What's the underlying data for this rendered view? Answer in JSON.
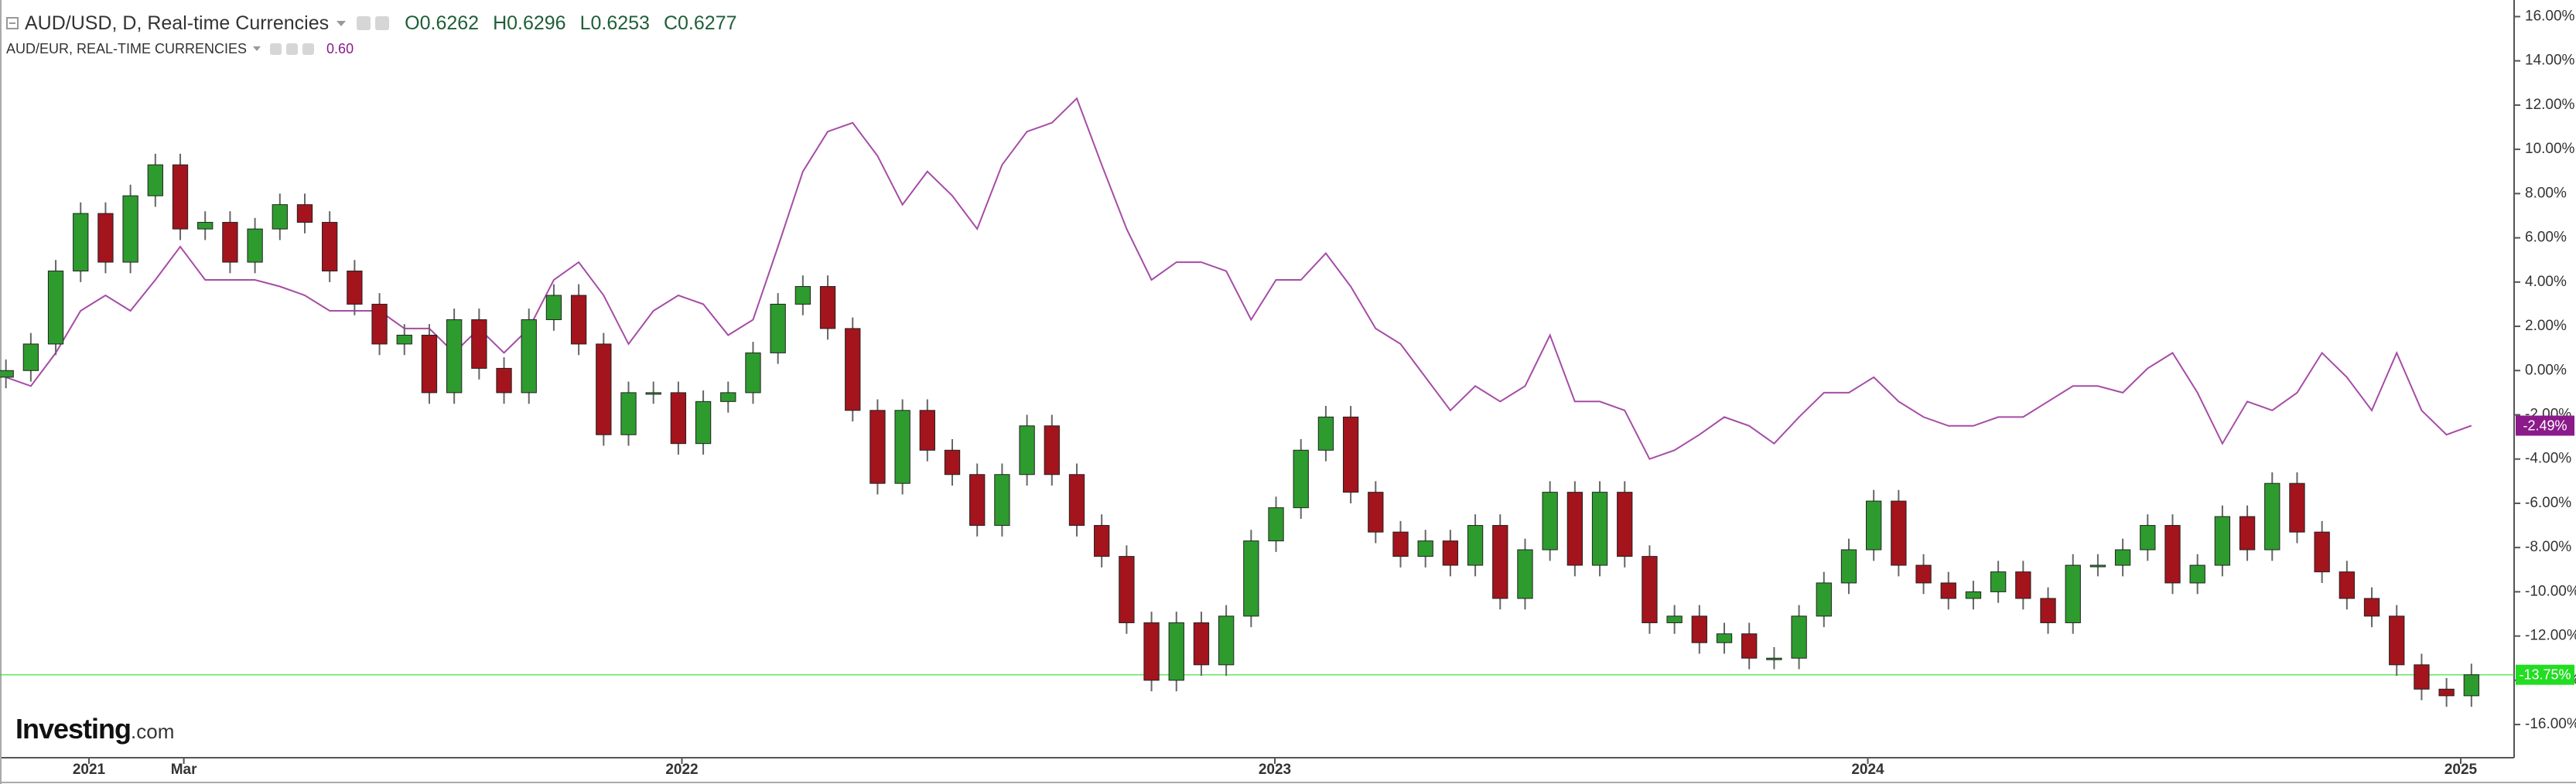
{
  "chart_data": {
    "type": "candlestick",
    "title": "AUD/USD, D, Real-time Currencies",
    "ohlc_labels": [
      "O",
      "H",
      "L",
      "C"
    ],
    "ohlc_values": [
      0.6262,
      0.6296,
      0.6253,
      0.6277
    ],
    "up_color": "#2e9b2e",
    "down_color": "#a3141c",
    "xlim": [
      2020.85,
      2025.09
    ],
    "xticks": [
      2021,
      {
        "value": 2021.16,
        "label": "Mar"
      },
      2022,
      2023,
      2024,
      2025
    ],
    "ylim": [
      -17.5,
      16.75
    ],
    "yticks": [
      {
        "value": 16,
        "label": "16.00%"
      },
      {
        "value": 14,
        "label": "14.00%"
      },
      {
        "value": 12,
        "label": "12.00%"
      },
      {
        "value": 10,
        "label": "10.00%"
      },
      {
        "value": 8,
        "label": "8.00%"
      },
      {
        "value": 6,
        "label": "6.00%"
      },
      {
        "value": 4,
        "label": "4.00%"
      },
      {
        "value": 2,
        "label": "2.00%"
      },
      {
        "value": 0,
        "label": "0.00%"
      },
      {
        "value": -2,
        "label": "-2.00%"
      },
      {
        "value": -4,
        "label": "-4.00%"
      },
      {
        "value": -6,
        "label": "-6.00%"
      },
      {
        "value": -8,
        "label": "-8.00%"
      },
      {
        "value": -10,
        "label": "-10.00%"
      },
      {
        "value": -12,
        "label": "-12.00%"
      },
      {
        "value": -14,
        "label": "-14.00%"
      },
      {
        "value": -16,
        "label": "-16.00%"
      }
    ],
    "x": [
      2020.86,
      2020.902,
      2020.944,
      2020.986,
      2021.028,
      2021.07,
      2021.112,
      2021.154,
      2021.196,
      2021.238,
      2021.28,
      2021.322,
      2021.364,
      2021.406,
      2021.448,
      2021.49,
      2021.532,
      2021.574,
      2021.616,
      2021.658,
      2021.7,
      2021.742,
      2021.784,
      2021.826,
      2021.868,
      2021.91,
      2021.952,
      2021.994,
      2022.036,
      2022.078,
      2022.12,
      2022.162,
      2022.204,
      2022.246,
      2022.288,
      2022.33,
      2022.372,
      2022.414,
      2022.456,
      2022.498,
      2022.54,
      2022.582,
      2022.624,
      2022.666,
      2022.708,
      2022.75,
      2022.792,
      2022.834,
      2022.876,
      2022.918,
      2022.96,
      2023.002,
      2023.044,
      2023.086,
      2023.128,
      2023.17,
      2023.212,
      2023.254,
      2023.296,
      2023.338,
      2023.38,
      2023.422,
      2023.464,
      2023.506,
      2023.548,
      2023.59,
      2023.632,
      2023.674,
      2023.716,
      2023.758,
      2023.8,
      2023.842,
      2023.884,
      2023.926,
      2023.968,
      2024.01,
      2024.052,
      2024.094,
      2024.136,
      2024.178,
      2024.22,
      2024.262,
      2024.304,
      2024.346,
      2024.388,
      2024.43,
      2024.472,
      2024.514,
      2024.556,
      2024.598,
      2024.64,
      2024.682,
      2024.724,
      2024.766,
      2024.808,
      2024.85,
      2024.892,
      2024.934,
      2024.976,
      2025.018
    ],
    "open": [
      -0.3,
      0,
      1.2,
      4.5,
      7.1,
      4.9,
      7.9,
      9.3,
      6.4,
      6.7,
      4.9,
      6.4,
      7.5,
      6.7,
      4.5,
      3.0,
      1.2,
      1.6,
      -1.0,
      2.3,
      0.1,
      -1.0,
      2.3,
      3.4,
      1.2,
      -2.9,
      -1.0,
      -1.0,
      -3.3,
      -1.4,
      -1.0,
      0.8,
      3.0,
      3.8,
      1.9,
      -1.8,
      -5.1,
      -1.8,
      -3.6,
      -4.7,
      -7.0,
      -4.7,
      -2.5,
      -4.7,
      -7.0,
      -8.4,
      -11.4,
      -14.0,
      -11.4,
      -13.3,
      -11.1,
      -7.7,
      -6.2,
      -3.6,
      -2.1,
      -5.5,
      -7.3,
      -8.4,
      -7.7,
      -8.8,
      -7.0,
      -10.3,
      -8.1,
      -5.5,
      -8.8,
      -5.5,
      -8.4,
      -11.4,
      -11.1,
      -12.3,
      -11.9,
      -13.0,
      -13.0,
      -11.1,
      -9.6,
      -8.1,
      -5.9,
      -8.8,
      -9.6,
      -10.3,
      -10.0,
      -9.1,
      -10.3,
      -11.4,
      -8.8,
      -8.8,
      -8.1,
      -7.0,
      -9.6,
      -8.8,
      -6.6,
      -8.1,
      -5.1,
      -7.3,
      -9.1,
      -10.3,
      -11.1,
      -13.3,
      -14.4,
      -14.7
    ],
    "high": [
      0.5,
      1.7,
      5.0,
      7.6,
      7.6,
      8.4,
      9.8,
      9.8,
      7.2,
      7.2,
      6.9,
      8.0,
      8.0,
      7.2,
      5.0,
      3.5,
      2.1,
      2.1,
      2.8,
      2.8,
      0.6,
      2.8,
      3.9,
      3.9,
      1.7,
      -0.5,
      -0.5,
      -0.5,
      -0.9,
      -0.5,
      1.3,
      3.5,
      4.3,
      4.3,
      2.4,
      -1.3,
      -1.3,
      -1.3,
      -3.1,
      -4.2,
      -4.2,
      -2.0,
      -2.0,
      -4.2,
      -6.5,
      -7.9,
      -10.9,
      -10.9,
      -10.9,
      -10.6,
      -7.2,
      -5.7,
      -3.1,
      -1.6,
      -1.6,
      -5.0,
      -6.8,
      -7.2,
      -7.2,
      -6.5,
      -6.5,
      -7.6,
      -5.0,
      -5.0,
      -5.0,
      -5.0,
      -7.9,
      -10.6,
      -10.6,
      -11.4,
      -11.4,
      -12.5,
      -10.6,
      -9.1,
      -7.6,
      -5.4,
      -5.4,
      -8.3,
      -9.1,
      -9.5,
      -8.6,
      -8.6,
      -9.8,
      -8.3,
      -8.3,
      -7.6,
      -6.5,
      -6.5,
      -8.3,
      -6.1,
      -6.1,
      -4.6,
      -4.6,
      -6.8,
      -8.6,
      -9.8,
      -10.6,
      -12.8,
      -13.9,
      -13.25
    ],
    "low": [
      -0.8,
      -0.5,
      0.7,
      4.0,
      4.4,
      4.4,
      7.4,
      5.9,
      5.9,
      4.4,
      4.4,
      5.9,
      6.2,
      4.0,
      2.5,
      0.7,
      0.7,
      -1.5,
      -1.5,
      -0.4,
      -1.5,
      -1.5,
      1.8,
      0.7,
      -3.4,
      -3.4,
      -1.5,
      -3.8,
      -3.8,
      -1.9,
      -1.5,
      0.3,
      2.5,
      1.4,
      -2.3,
      -5.6,
      -5.6,
      -4.1,
      -5.2,
      -7.5,
      -7.5,
      -5.2,
      -5.2,
      -7.5,
      -8.9,
      -11.9,
      -14.5,
      -14.5,
      -13.8,
      -13.8,
      -11.6,
      -8.2,
      -6.7,
      -4.1,
      -6.0,
      -7.8,
      -8.9,
      -8.9,
      -9.3,
      -9.3,
      -10.8,
      -10.8,
      -8.6,
      -9.3,
      -9.3,
      -8.9,
      -11.9,
      -11.9,
      -12.8,
      -12.8,
      -13.5,
      -13.5,
      -13.5,
      -11.6,
      -10.1,
      -8.6,
      -9.3,
      -10.1,
      -10.8,
      -10.8,
      -10.5,
      -10.8,
      -11.9,
      -11.9,
      -9.3,
      -9.3,
      -8.6,
      -10.1,
      -10.1,
      -9.3,
      -8.6,
      -8.6,
      -7.8,
      -9.6,
      -10.8,
      -11.6,
      -13.8,
      -14.9,
      -15.2,
      -15.2
    ],
    "close": [
      0,
      1.2,
      4.5,
      7.1,
      4.9,
      7.9,
      9.3,
      6.4,
      6.7,
      4.9,
      6.4,
      7.5,
      6.7,
      4.5,
      3.0,
      1.2,
      1.6,
      -1.0,
      2.3,
      0.1,
      -1.0,
      2.3,
      3.4,
      1.2,
      -2.9,
      -1.0,
      -1.0,
      -3.3,
      -1.4,
      -1.0,
      0.8,
      3.0,
      3.8,
      1.9,
      -1.8,
      -5.1,
      -1.8,
      -3.6,
      -4.7,
      -7.0,
      -4.7,
      -2.5,
      -4.7,
      -7.0,
      -8.4,
      -11.4,
      -14.0,
      -11.4,
      -13.3,
      -11.1,
      -7.7,
      -6.2,
      -3.6,
      -2.1,
      -5.5,
      -7.3,
      -8.4,
      -7.7,
      -8.8,
      -7.0,
      -10.3,
      -8.1,
      -5.5,
      -8.8,
      -5.5,
      -8.4,
      -11.4,
      -11.1,
      -12.3,
      -11.9,
      -13.0,
      -13.0,
      -11.1,
      -9.6,
      -8.1,
      -5.9,
      -8.8,
      -9.6,
      -10.3,
      -10.0,
      -9.1,
      -10.3,
      -11.4,
      -8.8,
      -8.8,
      -8.1,
      -7.0,
      -9.6,
      -8.8,
      -6.6,
      -8.1,
      -5.1,
      -7.3,
      -9.1,
      -10.3,
      -11.1,
      -13.3,
      -14.4,
      -14.7,
      -13.75
    ],
    "last_tag": {
      "value": -13.75,
      "label": "-13.75%"
    },
    "last_color": "#22dd22",
    "overlay": {
      "type": "line",
      "name": "AUD/EUR, REAL-TIME CURRENCIES",
      "legend_value": {
        "value": 0.6,
        "label": "0.60"
      },
      "color": "#a64ca6",
      "tag_color": "#8b1a8b",
      "values": [
        -0.3,
        -0.7,
        0.8,
        2.7,
        3.4,
        2.7,
        4.1,
        5.6,
        4.1,
        4.1,
        4.1,
        3.8,
        3.4,
        2.7,
        2.7,
        2.7,
        1.9,
        1.9,
        0.8,
        1.9,
        0.8,
        1.9,
        4.1,
        4.9,
        3.4,
        1.2,
        2.7,
        3.4,
        3.0,
        1.6,
        2.3,
        5.6,
        9.0,
        10.8,
        11.2,
        9.7,
        7.5,
        9.0,
        7.9,
        6.4,
        9.3,
        10.8,
        11.2,
        12.3,
        9.3,
        6.4,
        4.1,
        4.9,
        4.9,
        4.5,
        2.3,
        4.1,
        4.1,
        5.3,
        3.8,
        1.9,
        1.2,
        -0.3,
        -1.8,
        -0.7,
        -1.4,
        -0.7,
        1.6,
        -1.4,
        -1.4,
        -1.8,
        -4.0,
        -3.6,
        -2.9,
        -2.1,
        -2.5,
        -3.3,
        -2.1,
        -1.0,
        -1.0,
        -0.3,
        -1.4,
        -2.1,
        -2.5,
        -2.5,
        -2.1,
        -2.1,
        -1.4,
        -0.7,
        -0.7,
        -1.0,
        0.1,
        0.8,
        -1.0,
        -3.3,
        -1.4,
        -1.8,
        -1.0,
        0.8,
        -0.3,
        -1.8,
        0.8,
        -1.8,
        -2.9,
        -2.49
      ],
      "last_tag": {
        "value": -2.49,
        "label": "-2.49%"
      }
    },
    "logo": [
      "Investing",
      ".com"
    ]
  }
}
